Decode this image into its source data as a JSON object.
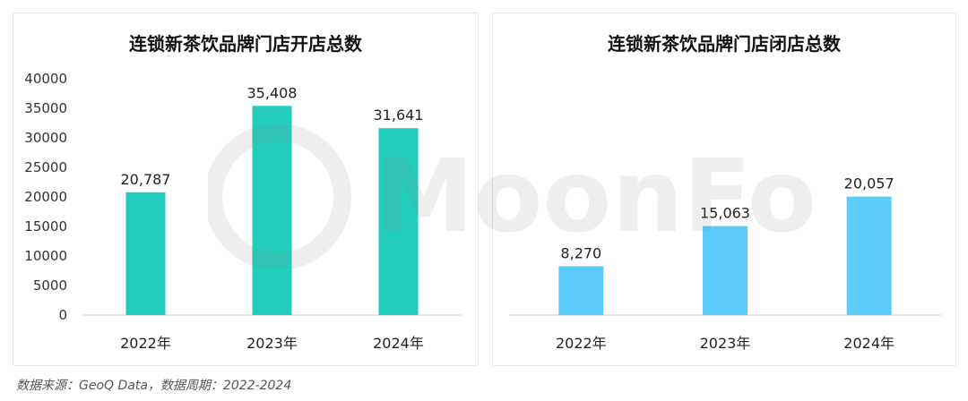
{
  "footer": {
    "source": "数据来源：GeoQ Data，数据周期：2022-2024"
  },
  "watermark": {
    "text": "MoonFox"
  },
  "colors": {
    "open_bar": "#22cdbd",
    "close_bar": "#5ccbfa",
    "axis": "#d0d0d0"
  },
  "chart_data": [
    {
      "type": "bar",
      "title": "连锁新茶饮品牌门店开店总数",
      "xlabel": "",
      "ylabel": "",
      "categories": [
        "2022年",
        "2023年",
        "2024年"
      ],
      "values": [
        20787,
        35408,
        31641
      ],
      "value_labels": [
        "20,787",
        "35,408",
        "31,641"
      ],
      "ylim": [
        0,
        40000
      ],
      "yticks": [
        0,
        5000,
        10000,
        15000,
        20000,
        25000,
        30000,
        35000,
        40000
      ],
      "show_y_axis": true,
      "grid": false,
      "color": "#22cdbd"
    },
    {
      "type": "bar",
      "title": "连锁新茶饮品牌门店闭店总数",
      "xlabel": "",
      "ylabel": "",
      "categories": [
        "2022年",
        "2023年",
        "2024年"
      ],
      "values": [
        8270,
        15063,
        20057
      ],
      "value_labels": [
        "8,270",
        "15,063",
        "20,057"
      ],
      "ylim": [
        0,
        40000
      ],
      "show_y_axis": false,
      "grid": false,
      "color": "#5ccbfa"
    }
  ]
}
